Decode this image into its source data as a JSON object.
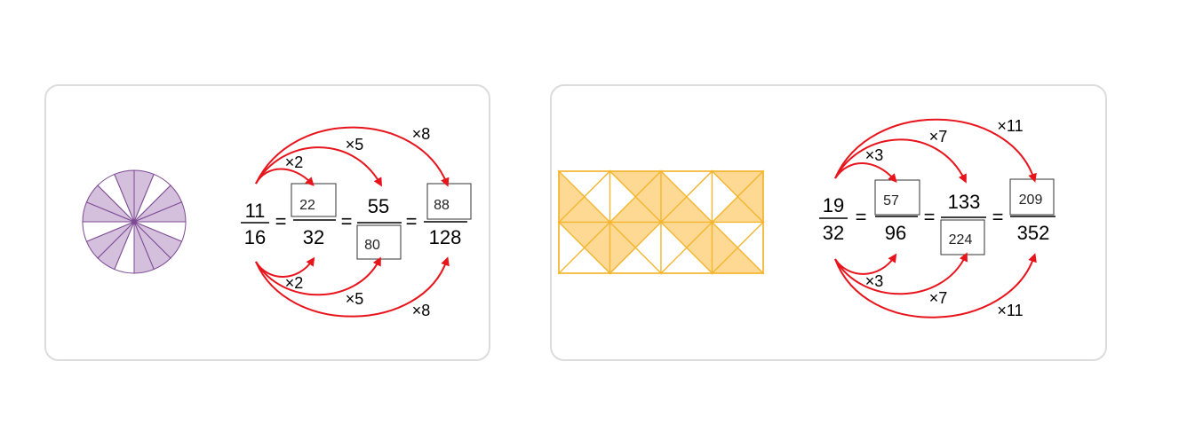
{
  "colors": {
    "arrow": "#e8141c",
    "pie_fill": "#d4bfdd",
    "pie_stroke": "#7c4a93",
    "grid_fill": "#fdd994",
    "grid_stroke": "#f4b52f"
  },
  "left": {
    "pie": {
      "slices": 16,
      "shaded": 11
    },
    "base": {
      "numerator": "11",
      "denominator": "16"
    },
    "equals": "=",
    "fractions": [
      {
        "numerator": "22",
        "denominator": "32",
        "numerator_boxed": true,
        "denominator_boxed": false
      },
      {
        "numerator": "55",
        "denominator": "80",
        "numerator_boxed": false,
        "denominator_boxed": true
      },
      {
        "numerator": "88",
        "denominator": "128",
        "numerator_boxed": true,
        "denominator_boxed": false
      }
    ],
    "top_multipliers": [
      "×2",
      "×5",
      "×8"
    ],
    "bottom_multipliers": [
      "×2",
      "×5",
      "×8"
    ]
  },
  "right": {
    "grid": {
      "cols": 4,
      "rows": 2,
      "shaded_triangles": [
        [
          [
            1,
            2,
            3
          ],
          [
            0,
            3
          ]
        ],
        [
          [
            0
          ],
          [
            1,
            2
          ]
        ],
        [
          [
            1,
            2,
            3
          ],
          [
            3
          ]
        ],
        [
          [
            0
          ],
          [
            2,
            3
          ]
        ],
        [
          [
            1,
            2,
            3
          ],
          [
            0,
            3
          ]
        ],
        [
          [
            0
          ],
          [
            1,
            2
          ]
        ],
        [
          [
            1,
            2,
            3
          ],
          [
            3
          ]
        ],
        [
          [
            0
          ],
          [
            2,
            3
          ]
        ]
      ]
    },
    "base": {
      "numerator": "19",
      "denominator": "32"
    },
    "equals": "=",
    "fractions": [
      {
        "numerator": "57",
        "denominator": "96",
        "numerator_boxed": true,
        "denominator_boxed": false
      },
      {
        "numerator": "133",
        "denominator": "224",
        "numerator_boxed": false,
        "denominator_boxed": true
      },
      {
        "numerator": "209",
        "denominator": "352",
        "numerator_boxed": true,
        "denominator_boxed": false
      }
    ],
    "top_multipliers": [
      "×3",
      "×7",
      "×11"
    ],
    "bottom_multipliers": [
      "×3",
      "×7",
      "×11"
    ]
  }
}
